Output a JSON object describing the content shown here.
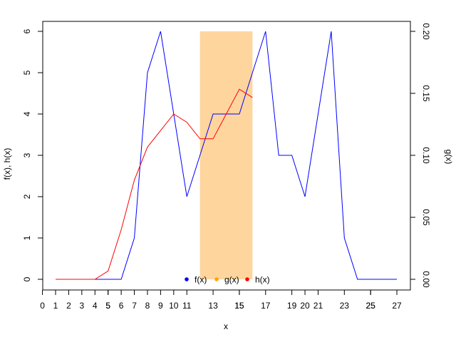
{
  "chart_data": {
    "type": "line",
    "title": "",
    "xlabel": "x",
    "ylabel_left": "f(x), h(x)",
    "ylabel_right": "g(x)",
    "xlim": [
      1,
      27
    ],
    "ylim_left": [
      0,
      6
    ],
    "ylim_right": [
      0,
      0.2
    ],
    "x_ticks_major": [
      0,
      1,
      2,
      3,
      4,
      5,
      6,
      7,
      8,
      9,
      10,
      11,
      13,
      15,
      17,
      19,
      20,
      21,
      23,
      25,
      27
    ],
    "x_ticks_minor": [
      5,
      15,
      25
    ],
    "y_ticks_left": [
      0,
      1,
      2,
      3,
      4,
      5,
      6
    ],
    "y_ticks_right": [
      "0.00",
      "0.05",
      "0.10",
      "0.15",
      "0.20"
    ],
    "series": [
      {
        "name": "f(x)",
        "color": "#0000ff",
        "axis": "left",
        "x": [
          1,
          2,
          3,
          4,
          5,
          6,
          7,
          8,
          9,
          10,
          11,
          12,
          13,
          14,
          15,
          16,
          17,
          18,
          19,
          20,
          21,
          22,
          23,
          24,
          25,
          26,
          27
        ],
        "values": [
          0,
          0,
          0,
          0,
          0,
          0,
          1,
          5,
          6,
          4,
          2,
          3,
          4,
          4,
          4,
          5,
          6,
          3,
          3,
          2,
          4,
          6,
          1,
          0,
          0,
          0,
          0
        ]
      },
      {
        "name": "g(x)",
        "color": "#ffa500",
        "axis": "right",
        "type": "rect",
        "x_range": [
          12,
          16
        ],
        "value": 0.2
      },
      {
        "name": "h(x)",
        "color": "#ff0000",
        "axis": "left",
        "x": [
          1,
          2,
          3,
          4,
          5,
          6,
          7,
          8,
          9,
          10,
          11,
          12,
          13,
          14,
          15,
          16
        ],
        "values": [
          0,
          0,
          0,
          0,
          0.2,
          1.2,
          2.4,
          3.2,
          3.6,
          4,
          3.8,
          3.4,
          3.4,
          4,
          4.6,
          4.4
        ]
      }
    ],
    "legend": {
      "placement": "bottom-center",
      "entries": [
        {
          "label": "f(x)",
          "color": "#0000ff"
        },
        {
          "label": "g(x)",
          "color": "#ffa500"
        },
        {
          "label": "h(x)",
          "color": "#ff0000"
        }
      ]
    }
  }
}
